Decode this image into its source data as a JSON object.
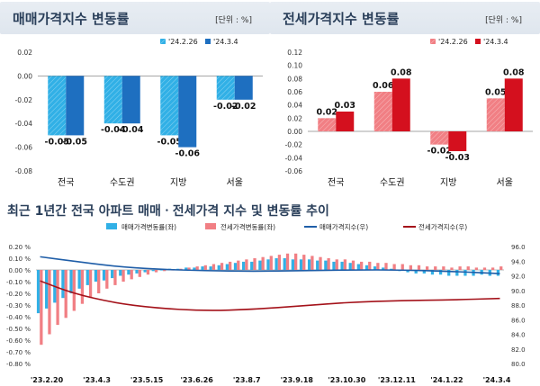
{
  "colors": {
    "sale_prev": "#31b0e6",
    "sale_curr": "#1e6fc0",
    "jeonse_prev": "#f17f84",
    "jeonse_curr": "#d4101e",
    "sale_index_line": "#1f5ea8",
    "jeonse_index_line": "#a4121a"
  },
  "chart_data": [
    {
      "type": "bar",
      "title": "매매가격지수 변동률",
      "unit": "[단위 : %]",
      "categories": [
        "전국",
        "수도권",
        "지방",
        "서울"
      ],
      "series": [
        {
          "name": "'24.2.26",
          "values": [
            -0.05,
            -0.04,
            -0.05,
            -0.02
          ],
          "labels": [
            "-0.05",
            "-0.04",
            "-0.05",
            "-0.02"
          ]
        },
        {
          "name": "'24.3.4",
          "values": [
            -0.05,
            -0.04,
            -0.06,
            -0.02
          ],
          "labels": [
            "-0.05",
            "-0.04",
            "-0.06",
            "-0.02"
          ]
        }
      ],
      "ylim": [
        -0.08,
        0.02
      ],
      "yticks": [
        "0.02",
        "0.00",
        "-0.02",
        "-0.04",
        "-0.06",
        "-0.08"
      ],
      "legend": "top-right"
    },
    {
      "type": "bar",
      "title": "전세가격지수 변동률",
      "unit": "[단위 : %]",
      "categories": [
        "전국",
        "수도권",
        "지방",
        "서울"
      ],
      "series": [
        {
          "name": "'24.2.26",
          "values": [
            0.02,
            0.06,
            -0.02,
            0.05
          ],
          "labels": [
            "0.02",
            "0.06",
            "-0.02",
            "0.05"
          ]
        },
        {
          "name": "'24.3.4",
          "values": [
            0.03,
            0.08,
            -0.03,
            0.08
          ],
          "labels": [
            "0.03",
            "0.08",
            "-0.03",
            "0.08"
          ]
        }
      ],
      "ylim": [
        -0.06,
        0.12
      ],
      "yticks": [
        "0.12",
        "0.10",
        "0.08",
        "0.06",
        "0.04",
        "0.02",
        "0.00",
        "-0.02",
        "-0.04",
        "-0.06"
      ],
      "legend": "top-right"
    },
    {
      "type": "bar",
      "title": "최근 1년간 전국 아파트 매매ㆍ전세가격 지수 및 변동률 추이",
      "x_tick_labels": [
        "'23.2.20",
        "'23.4.3",
        "'23.5.15",
        "'23.6.26",
        "'23.8.7",
        "'23.9.18",
        "'23.10.30",
        "'23.12.11",
        "'24.1.22",
        "'24.3.4"
      ],
      "left_axis": {
        "ylim": [
          -0.8,
          0.2
        ],
        "ticks": [
          "0.20 %",
          "0.10 %",
          "0.00 %",
          "-0.10 %",
          "-0.20 %",
          "-0.30 %",
          "-0.40 %",
          "-0.50 %",
          "-0.60 %",
          "-0.70 %",
          "-0.80 %"
        ]
      },
      "right_axis": {
        "ylim": [
          80.0,
          96.0
        ],
        "ticks": [
          "96.0",
          "94.0",
          "92.0",
          "90.0",
          "88.0",
          "86.0",
          "84.0",
          "82.0",
          "80.0"
        ]
      },
      "legend": "top",
      "series": [
        {
          "name": "매매가격변동률(좌)",
          "kind": "bar",
          "axis": "left",
          "values": [
            -0.37,
            -0.33,
            -0.28,
            -0.24,
            -0.2,
            -0.16,
            -0.13,
            -0.1,
            -0.09,
            -0.07,
            -0.05,
            -0.04,
            -0.03,
            -0.02,
            -0.01,
            0.0,
            0.01,
            0.01,
            0.02,
            0.02,
            0.03,
            0.03,
            0.04,
            0.05,
            0.06,
            0.07,
            0.07,
            0.08,
            0.09,
            0.1,
            0.1,
            0.09,
            0.09,
            0.09,
            0.08,
            0.08,
            0.07,
            0.07,
            0.06,
            0.05,
            0.04,
            0.03,
            0.02,
            0.01,
            -0.01,
            -0.02,
            -0.03,
            -0.03,
            -0.04,
            -0.04,
            -0.05,
            -0.05,
            -0.05,
            -0.05,
            -0.04,
            -0.05,
            -0.05
          ]
        },
        {
          "name": "전세가격변동률(좌)",
          "kind": "bar",
          "axis": "left",
          "values": [
            -0.64,
            -0.55,
            -0.47,
            -0.41,
            -0.35,
            -0.29,
            -0.24,
            -0.2,
            -0.16,
            -0.13,
            -0.1,
            -0.08,
            -0.06,
            -0.04,
            -0.02,
            -0.01,
            0.0,
            0.01,
            0.02,
            0.03,
            0.04,
            0.05,
            0.06,
            0.07,
            0.08,
            0.09,
            0.1,
            0.11,
            0.12,
            0.13,
            0.14,
            0.14,
            0.13,
            0.12,
            0.11,
            0.1,
            0.09,
            0.09,
            0.08,
            0.07,
            0.07,
            0.06,
            0.06,
            0.05,
            0.05,
            0.04,
            0.04,
            0.03,
            0.03,
            0.03,
            0.02,
            0.03,
            0.03,
            0.02,
            0.02,
            0.02,
            0.03
          ]
        },
        {
          "name": "매매가격지수(우)",
          "kind": "line",
          "axis": "right",
          "points": [
            [
              0,
              94.6
            ],
            [
              4,
              94.0
            ],
            [
              9,
              93.3
            ],
            [
              14,
              92.9
            ],
            [
              20,
              92.7
            ],
            [
              26,
              92.6
            ],
            [
              32,
              92.7
            ],
            [
              38,
              92.8
            ],
            [
              44,
              92.8
            ],
            [
              50,
              92.6
            ],
            [
              56,
              92.3
            ]
          ]
        },
        {
          "name": "전세가격지수(우)",
          "kind": "line",
          "axis": "right",
          "points": [
            [
              0,
              91.3
            ],
            [
              4,
              89.6
            ],
            [
              9,
              88.3
            ],
            [
              14,
              87.6
            ],
            [
              20,
              87.2
            ],
            [
              26,
              87.4
            ],
            [
              32,
              87.9
            ],
            [
              38,
              88.4
            ],
            [
              44,
              88.6
            ],
            [
              50,
              88.7
            ],
            [
              56,
              88.9
            ]
          ]
        }
      ]
    }
  ]
}
